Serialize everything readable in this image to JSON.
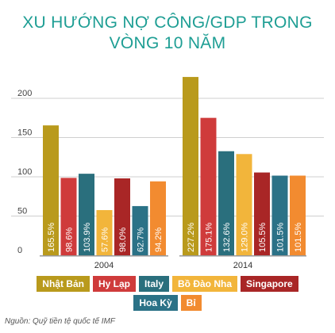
{
  "title_lines": [
    "XU HƯỚNG NỢ CÔNG/GDP TRONG",
    "VÒNG 10 NĂM"
  ],
  "source": "Nguồn: Quỹ tiền tệ quốc tế IMF",
  "chart_data": {
    "type": "bar",
    "title": "XU HƯỚNG NỢ CÔNG/GDP TRONG VÒNG 10 NĂM",
    "categories": [
      "2004",
      "2014"
    ],
    "ylim": [
      0,
      240
    ],
    "yticks": [
      0,
      50,
      100,
      150,
      200
    ],
    "grid": true,
    "legend_position": "bottom",
    "series": [
      {
        "name": "Nhật Bản",
        "color": "#b99a1c",
        "values": [
          165.5,
          227.2
        ],
        "labels": [
          "165.5%",
          "227.2%"
        ]
      },
      {
        "name": "Hy Lạp",
        "color": "#cf3b3b",
        "values": [
          98.6,
          175.1
        ],
        "labels": [
          "98.6%",
          "175.1%"
        ]
      },
      {
        "name": "Italy",
        "color": "#2a6f7d",
        "values": [
          103.9,
          132.6
        ],
        "labels": [
          "103.9%",
          "132.6%"
        ]
      },
      {
        "name": "Bồ Đào Nha",
        "color": "#f2b53b",
        "values": [
          57.6,
          129.0
        ],
        "labels": [
          "57.6%",
          "129.0%"
        ]
      },
      {
        "name": "Singapore",
        "color": "#a92626",
        "values": [
          98.0,
          105.5
        ],
        "labels": [
          "98.0%",
          "105.5%"
        ]
      },
      {
        "name": "Hoa Kỳ",
        "color": "#2b7287",
        "values": [
          62.7,
          101.5
        ],
        "labels": [
          "62.7%",
          "101.5%"
        ]
      },
      {
        "name": "Bỉ",
        "color": "#f28b30",
        "values": [
          94.2,
          101.5
        ],
        "labels": [
          "94.2%",
          "101.5%"
        ]
      }
    ]
  }
}
